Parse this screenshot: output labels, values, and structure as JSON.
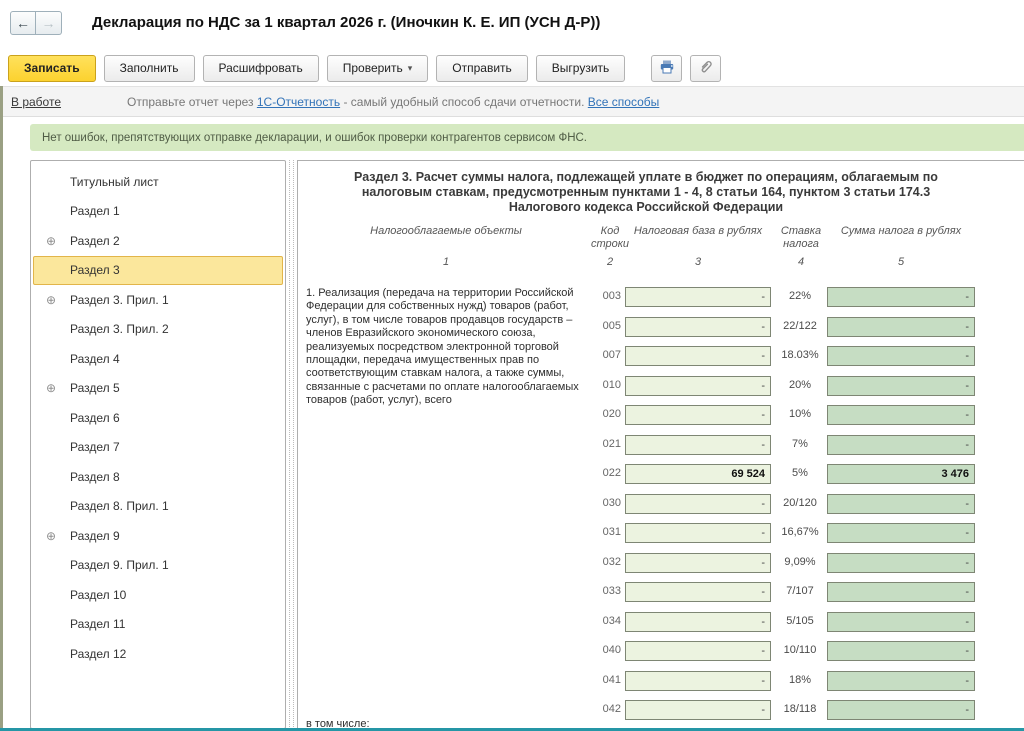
{
  "window": {
    "title": "Декларация по НДС за 1 квартал 2026 г. (Иночкин К. Е. ИП (УСН Д-Р))"
  },
  "icons": {
    "back": "←",
    "forward": "→",
    "dropdown": "▾",
    "expand": "⊕"
  },
  "toolbar": {
    "save": "Записать",
    "fill": "Заполнить",
    "decrypt": "Расшифровать",
    "check": "Проверить",
    "send": "Отправить",
    "export": "Выгрузить"
  },
  "statusbar": {
    "state": "В работе",
    "hint_prefix": "Отправьте отчет через ",
    "link_service": "1С-Отчетность",
    "hint_middle": " - самый удобный способ сдачи отчетности. ",
    "link_all_ways": "Все способы"
  },
  "message": "Нет ошибок, препятствующих отправке декларации, и ошибок проверки контрагентов сервисом ФНС.",
  "sidebar": {
    "items": [
      {
        "label": "Титульный лист",
        "expandable": false,
        "selected": false
      },
      {
        "label": "Раздел 1",
        "expandable": false,
        "selected": false
      },
      {
        "label": "Раздел 2",
        "expandable": true,
        "selected": false
      },
      {
        "label": "Раздел 3",
        "expandable": false,
        "selected": true
      },
      {
        "label": "Раздел 3. Прил. 1",
        "expandable": true,
        "selected": false
      },
      {
        "label": "Раздел 3. Прил. 2",
        "expandable": false,
        "selected": false
      },
      {
        "label": "Раздел 4",
        "expandable": false,
        "selected": false
      },
      {
        "label": "Раздел 5",
        "expandable": true,
        "selected": false
      },
      {
        "label": "Раздел 6",
        "expandable": false,
        "selected": false
      },
      {
        "label": "Раздел 7",
        "expandable": false,
        "selected": false
      },
      {
        "label": "Раздел 8",
        "expandable": false,
        "selected": false
      },
      {
        "label": "Раздел 8. Прил. 1",
        "expandable": false,
        "selected": false
      },
      {
        "label": "Раздел 9",
        "expandable": true,
        "selected": false
      },
      {
        "label": "Раздел 9. Прил. 1",
        "expandable": false,
        "selected": false
      },
      {
        "label": "Раздел 10",
        "expandable": false,
        "selected": false
      },
      {
        "label": "Раздел 11",
        "expandable": false,
        "selected": false
      },
      {
        "label": "Раздел 12",
        "expandable": false,
        "selected": false
      }
    ]
  },
  "section": {
    "title": "Раздел 3. Расчет суммы налога, подлежащей уплате в бюджет по операциям, облагаемым по налоговым ставкам, предусмотренным пунктами 1 - 4, 8 статьи 164, пунктом 3 статьи 174.3 Налогового кодекса Российской Федерации",
    "columns": {
      "col1": "Налогооблагаемые объекты",
      "col1_num": "1",
      "col2": "Код строки",
      "col2_num": "2",
      "col3": "Налоговая база в рублях",
      "col3_num": "3",
      "col4": "Ставка налога",
      "col4_num": "4",
      "col5": "Сумма налога в рублях",
      "col5_num": "5"
    },
    "item1_text": "1. Реализация (передача на территории Российской Федерации для собственных нужд) товаров (работ, услуг), в том числе товаров продавцов государств – членов Евразийского экономического союза, реализуемых посредством электронной торговой площадки, передача имущественных прав по соответствующим ставкам налога, а также суммы, связанные с расчетами по оплате налогооблагаемых товаров (работ, услуг), всего",
    "rows": [
      {
        "code": "003",
        "base": "-",
        "rate": "22%",
        "tax": "-",
        "bold": false
      },
      {
        "code": "005",
        "base": "-",
        "rate": "22/122",
        "tax": "-",
        "bold": false
      },
      {
        "code": "007",
        "base": "-",
        "rate": "18.03%",
        "tax": "-",
        "bold": false
      },
      {
        "code": "010",
        "base": "-",
        "rate": "20%",
        "tax": "-",
        "bold": false
      },
      {
        "code": "020",
        "base": "-",
        "rate": "10%",
        "tax": "-",
        "bold": false
      },
      {
        "code": "021",
        "base": "-",
        "rate": "7%",
        "tax": "-",
        "bold": false
      },
      {
        "code": "022",
        "base": "69 524",
        "rate": "5%",
        "tax": "3 476",
        "bold": true
      },
      {
        "code": "030",
        "base": "-",
        "rate": "20/120",
        "tax": "-",
        "bold": false
      },
      {
        "code": "031",
        "base": "-",
        "rate": "16,67%",
        "tax": "-",
        "bold": false
      },
      {
        "code": "032",
        "base": "-",
        "rate": "9,09%",
        "tax": "-",
        "bold": false
      },
      {
        "code": "033",
        "base": "-",
        "rate": "7/107",
        "tax": "-",
        "bold": false
      },
      {
        "code": "034",
        "base": "-",
        "rate": "5/105",
        "tax": "-",
        "bold": false
      },
      {
        "code": "040",
        "base": "-",
        "rate": "10/110",
        "tax": "-",
        "bold": false
      },
      {
        "code": "041",
        "base": "-",
        "rate": "18%",
        "tax": "-",
        "bold": false
      },
      {
        "code": "042",
        "base": "-",
        "rate": "18/118",
        "tax": "-",
        "bold": false
      }
    ],
    "footer": "в том числе:"
  },
  "colors": {
    "primary_button": "#fcd22f",
    "selected_item_bg": "#fbe79c",
    "selected_item_border": "#e2b54a",
    "message_bg": "#d5e9c1",
    "base_field_bg": "#ecf3e0",
    "tax_field_bg": "#c6ddc3",
    "link_blue": "#3273b8",
    "bottom_edge": "#2596a6"
  }
}
